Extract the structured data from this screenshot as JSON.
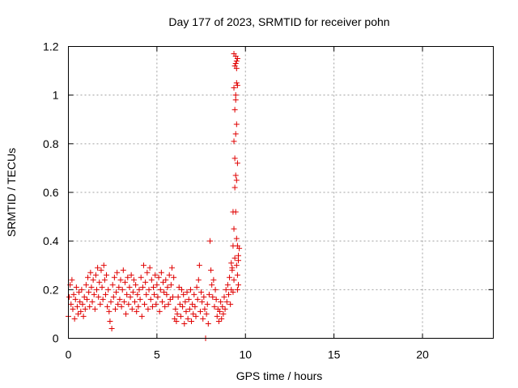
{
  "chart_data": {
    "type": "scatter",
    "title": "Day 177 of 2023, SRMTID for receiver pohn",
    "xlabel": "GPS time / hours",
    "ylabel": "SRMTID / TECUs",
    "xlim": [
      0,
      24
    ],
    "ylim": [
      0,
      1.2
    ],
    "xticks": [
      0,
      5,
      10,
      15,
      20
    ],
    "xtick_labels": [
      "0",
      "5",
      "10",
      "15",
      "20"
    ],
    "yticks": [
      0,
      0.2,
      0.4,
      0.6,
      0.8,
      1,
      1.2
    ],
    "ytick_labels": [
      "0",
      "0.2",
      "0.4",
      "0.6",
      "0.8",
      "1",
      "1.2"
    ],
    "grid": true,
    "marker": "+",
    "series": [
      {
        "name": "pohn",
        "color": "#e00000",
        "points": [
          [
            0.0,
            0.09
          ],
          [
            0.05,
            0.17
          ],
          [
            0.1,
            0.22
          ],
          [
            0.15,
            0.14
          ],
          [
            0.2,
            0.24
          ],
          [
            0.25,
            0.12
          ],
          [
            0.3,
            0.18
          ],
          [
            0.35,
            0.08
          ],
          [
            0.4,
            0.16
          ],
          [
            0.45,
            0.21
          ],
          [
            0.5,
            0.13
          ],
          [
            0.55,
            0.1
          ],
          [
            0.6,
            0.19
          ],
          [
            0.65,
            0.15
          ],
          [
            0.7,
            0.11
          ],
          [
            0.75,
            0.2
          ],
          [
            0.8,
            0.14
          ],
          [
            0.85,
            0.09
          ],
          [
            0.9,
            0.17
          ],
          [
            0.95,
            0.12
          ],
          [
            1.0,
            0.22
          ],
          [
            1.05,
            0.16
          ],
          [
            1.1,
            0.25
          ],
          [
            1.15,
            0.19
          ],
          [
            1.2,
            0.13
          ],
          [
            1.25,
            0.27
          ],
          [
            1.3,
            0.21
          ],
          [
            1.35,
            0.15
          ],
          [
            1.4,
            0.24
          ],
          [
            1.45,
            0.18
          ],
          [
            1.5,
            0.12
          ],
          [
            1.55,
            0.26
          ],
          [
            1.6,
            0.2
          ],
          [
            1.65,
            0.29
          ],
          [
            1.7,
            0.17
          ],
          [
            1.75,
            0.23
          ],
          [
            1.8,
            0.14
          ],
          [
            1.85,
            0.28
          ],
          [
            1.9,
            0.21
          ],
          [
            1.95,
            0.16
          ],
          [
            2.0,
            0.3
          ],
          [
            2.05,
            0.24
          ],
          [
            2.1,
            0.18
          ],
          [
            2.15,
            0.26
          ],
          [
            2.2,
            0.13
          ],
          [
            2.25,
            0.2
          ],
          [
            2.3,
            0.11
          ],
          [
            2.35,
            0.07
          ],
          [
            2.4,
            0.15
          ],
          [
            2.45,
            0.04
          ],
          [
            2.5,
            0.22
          ],
          [
            2.55,
            0.17
          ],
          [
            2.6,
            0.25
          ],
          [
            2.65,
            0.12
          ],
          [
            2.7,
            0.19
          ],
          [
            2.75,
            0.27
          ],
          [
            2.8,
            0.14
          ],
          [
            2.85,
            0.21
          ],
          [
            2.9,
            0.16
          ],
          [
            2.95,
            0.24
          ],
          [
            3.0,
            0.13
          ],
          [
            3.05,
            0.2
          ],
          [
            3.1,
            0.28
          ],
          [
            3.15,
            0.15
          ],
          [
            3.2,
            0.23
          ],
          [
            3.25,
            0.1
          ],
          [
            3.3,
            0.18
          ],
          [
            3.35,
            0.25
          ],
          [
            3.4,
            0.14
          ],
          [
            3.45,
            0.21
          ],
          [
            3.5,
            0.17
          ],
          [
            3.55,
            0.26
          ],
          [
            3.6,
            0.12
          ],
          [
            3.65,
            0.19
          ],
          [
            3.7,
            0.24
          ],
          [
            3.75,
            0.15
          ],
          [
            3.8,
            0.22
          ],
          [
            3.85,
            0.11
          ],
          [
            3.9,
            0.18
          ],
          [
            3.95,
            0.13
          ],
          [
            4.0,
            0.2
          ],
          [
            4.05,
            0.16
          ],
          [
            4.1,
            0.25
          ],
          [
            4.15,
            0.09
          ],
          [
            4.2,
            0.21
          ],
          [
            4.25,
            0.3
          ],
          [
            4.3,
            0.14
          ],
          [
            4.35,
            0.23
          ],
          [
            4.4,
            0.18
          ],
          [
            4.45,
            0.27
          ],
          [
            4.5,
            0.12
          ],
          [
            4.55,
            0.2
          ],
          [
            4.6,
            0.29
          ],
          [
            4.65,
            0.16
          ],
          [
            4.7,
            0.24
          ],
          [
            4.75,
            0.13
          ],
          [
            4.8,
            0.21
          ],
          [
            4.85,
            0.18
          ],
          [
            4.9,
            0.26
          ],
          [
            4.95,
            0.14
          ],
          [
            5.0,
            0.22
          ],
          [
            5.05,
            0.17
          ],
          [
            5.1,
            0.25
          ],
          [
            5.15,
            0.11
          ],
          [
            5.2,
            0.2
          ],
          [
            5.25,
            0.27
          ],
          [
            5.3,
            0.15
          ],
          [
            5.35,
            0.23
          ],
          [
            5.4,
            0.19
          ],
          [
            5.45,
            0.13
          ],
          [
            5.5,
            0.24
          ],
          [
            5.55,
            0.18
          ],
          [
            5.6,
            0.21
          ],
          [
            5.65,
            0.14
          ],
          [
            5.7,
            0.26
          ],
          [
            5.75,
            0.16
          ],
          [
            5.8,
            0.22
          ],
          [
            5.85,
            0.29
          ],
          [
            5.9,
            0.17
          ],
          [
            5.95,
            0.25
          ],
          [
            6.0,
            0.08
          ],
          [
            6.05,
            0.12
          ],
          [
            6.1,
            0.07
          ],
          [
            6.15,
            0.1
          ],
          [
            6.2,
            0.17
          ],
          [
            6.25,
            0.21
          ],
          [
            6.3,
            0.14
          ],
          [
            6.35,
            0.09
          ],
          [
            6.4,
            0.2
          ],
          [
            6.45,
            0.13
          ],
          [
            6.5,
            0.18
          ],
          [
            6.55,
            0.06
          ],
          [
            6.6,
            0.15
          ],
          [
            6.65,
            0.11
          ],
          [
            6.7,
            0.19
          ],
          [
            6.75,
            0.08
          ],
          [
            6.8,
            0.16
          ],
          [
            6.85,
            0.12
          ],
          [
            6.9,
            0.2
          ],
          [
            6.95,
            0.07
          ],
          [
            7.0,
            0.14
          ],
          [
            7.05,
            0.1
          ],
          [
            7.1,
            0.18
          ],
          [
            7.15,
            0.13
          ],
          [
            7.2,
            0.09
          ],
          [
            7.25,
            0.21
          ],
          [
            7.3,
            0.16
          ],
          [
            7.35,
            0.24
          ],
          [
            7.4,
            0.3
          ],
          [
            7.45,
            0.11
          ],
          [
            7.5,
            0.19
          ],
          [
            7.55,
            0.15
          ],
          [
            7.6,
            0.08
          ],
          [
            7.65,
            0.17
          ],
          [
            7.7,
            0.12
          ],
          [
            7.75,
            0.0
          ],
          [
            7.8,
            0.1
          ],
          [
            7.85,
            0.14
          ],
          [
            7.9,
            0.06
          ],
          [
            7.95,
            0.18
          ],
          [
            8.0,
            0.4
          ],
          [
            8.05,
            0.28
          ],
          [
            8.1,
            0.22
          ],
          [
            8.15,
            0.17
          ],
          [
            8.2,
            0.24
          ],
          [
            8.25,
            0.13
          ],
          [
            8.3,
            0.2
          ],
          [
            8.35,
            0.16
          ],
          [
            8.4,
            0.09
          ],
          [
            8.45,
            0.12
          ],
          [
            8.5,
            0.07
          ],
          [
            8.55,
            0.11
          ],
          [
            8.6,
            0.15
          ],
          [
            8.65,
            0.08
          ],
          [
            8.7,
            0.13
          ],
          [
            8.75,
            0.1
          ],
          [
            8.8,
            0.17
          ],
          [
            8.85,
            0.12
          ],
          [
            8.9,
            0.2
          ],
          [
            8.95,
            0.15
          ],
          [
            9.0,
            0.22
          ],
          [
            9.05,
            0.18
          ],
          [
            9.1,
            0.25
          ],
          [
            9.15,
            0.14
          ],
          [
            9.2,
            0.2
          ],
          [
            9.25,
            0.28
          ],
          [
            9.3,
            0.19
          ],
          [
            9.35,
            0.24
          ],
          [
            9.4,
            0.33
          ],
          [
            9.2,
            0.31
          ],
          [
            9.25,
            0.29
          ],
          [
            9.3,
            0.38
          ],
          [
            9.35,
            0.45
          ],
          [
            9.3,
            0.52
          ],
          [
            9.45,
            0.52
          ],
          [
            9.4,
            0.62
          ],
          [
            9.5,
            0.65
          ],
          [
            9.55,
            0.72
          ],
          [
            9.45,
            0.67
          ],
          [
            9.4,
            0.74
          ],
          [
            9.35,
            0.81
          ],
          [
            9.45,
            0.84
          ],
          [
            9.5,
            0.88
          ],
          [
            9.4,
            0.94
          ],
          [
            9.45,
            0.98
          ],
          [
            9.35,
            1.03
          ],
          [
            9.5,
            1.05
          ],
          [
            9.55,
            1.04
          ],
          [
            9.45,
            1.0
          ],
          [
            9.4,
            1.12
          ],
          [
            9.5,
            1.14
          ],
          [
            9.45,
            1.16
          ],
          [
            9.55,
            1.15
          ],
          [
            9.35,
            1.17
          ],
          [
            9.45,
            1.13
          ],
          [
            9.5,
            1.11
          ],
          [
            9.55,
            0.2
          ],
          [
            9.5,
            0.3
          ],
          [
            9.55,
            0.38
          ],
          [
            9.5,
            0.41
          ],
          [
            9.6,
            0.34
          ],
          [
            9.55,
            0.26
          ],
          [
            9.6,
            0.22
          ],
          [
            9.65,
            0.37
          ],
          [
            9.6,
            0.32
          ]
        ]
      }
    ]
  }
}
